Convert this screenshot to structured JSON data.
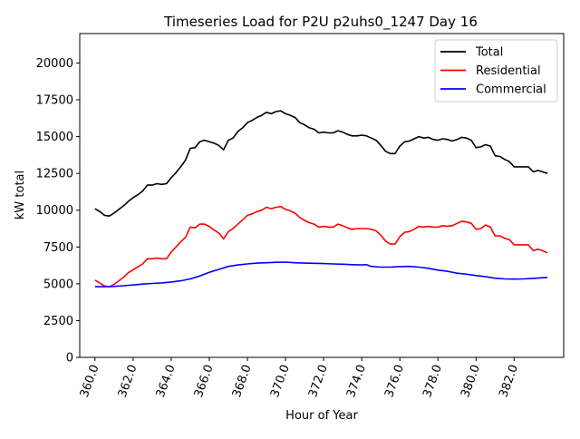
{
  "chart_data": {
    "type": "line",
    "title": "Timeseries Load for P2U p2uhs0_1247  Day 16",
    "xlabel": "Hour of Year",
    "ylabel": "kW total",
    "xlim": [
      359.2,
      384.6
    ],
    "ylim": [
      0,
      22000
    ],
    "xticks": [
      360,
      362,
      364,
      366,
      368,
      370,
      372,
      374,
      376,
      378,
      380,
      382
    ],
    "xtick_labels": [
      "360.0",
      "362.0",
      "364.0",
      "366.0",
      "368.0",
      "370.0",
      "372.0",
      "374.0",
      "376.0",
      "378.0",
      "380.0",
      "382.0"
    ],
    "yticks": [
      0,
      2500,
      5000,
      7500,
      10000,
      12500,
      15000,
      17500,
      20000
    ],
    "ytick_labels": [
      "0",
      "2500",
      "5000",
      "7500",
      "10000",
      "12500",
      "15000",
      "17500",
      "20000"
    ],
    "legend_position": "top-right",
    "series": [
      {
        "name": "Total",
        "color": "#000000",
        "points": [
          [
            360,
            10100
          ],
          [
            360.25,
            9900
          ],
          [
            360.5,
            9650
          ],
          [
            360.75,
            9600
          ],
          [
            361,
            9800
          ],
          [
            361.25,
            10050
          ],
          [
            361.5,
            10300
          ],
          [
            361.75,
            10600
          ],
          [
            362,
            10850
          ],
          [
            362.25,
            11050
          ],
          [
            362.5,
            11300
          ],
          [
            362.75,
            11700
          ],
          [
            363,
            11700
          ],
          [
            363.25,
            11800
          ],
          [
            363.5,
            11750
          ],
          [
            363.75,
            11800
          ],
          [
            364,
            12200
          ],
          [
            364.25,
            12550
          ],
          [
            364.5,
            12950
          ],
          [
            364.75,
            13400
          ],
          [
            365,
            14200
          ],
          [
            365.25,
            14250
          ],
          [
            365.5,
            14650
          ],
          [
            365.75,
            14750
          ],
          [
            366,
            14650
          ],
          [
            366.25,
            14550
          ],
          [
            366.5,
            14400
          ],
          [
            366.75,
            14100
          ],
          [
            367,
            14750
          ],
          [
            367.25,
            14900
          ],
          [
            367.5,
            15350
          ],
          [
            367.75,
            15600
          ],
          [
            368,
            15950
          ],
          [
            368.25,
            16100
          ],
          [
            368.5,
            16300
          ],
          [
            368.75,
            16450
          ],
          [
            369,
            16650
          ],
          [
            369.25,
            16550
          ],
          [
            369.5,
            16700
          ],
          [
            369.75,
            16750
          ],
          [
            370,
            16550
          ],
          [
            370.25,
            16450
          ],
          [
            370.5,
            16300
          ],
          [
            370.75,
            15950
          ],
          [
            371,
            15800
          ],
          [
            371.25,
            15600
          ],
          [
            371.5,
            15500
          ],
          [
            371.75,
            15250
          ],
          [
            372,
            15300
          ],
          [
            372.25,
            15250
          ],
          [
            372.5,
            15250
          ],
          [
            372.75,
            15400
          ],
          [
            373,
            15300
          ],
          [
            373.25,
            15150
          ],
          [
            373.5,
            15050
          ],
          [
            373.75,
            15050
          ],
          [
            374,
            15100
          ],
          [
            374.25,
            15050
          ],
          [
            374.5,
            14900
          ],
          [
            374.75,
            14750
          ],
          [
            375,
            14400
          ],
          [
            375.25,
            14000
          ],
          [
            375.5,
            13850
          ],
          [
            375.75,
            13850
          ],
          [
            376,
            14350
          ],
          [
            376.25,
            14650
          ],
          [
            376.5,
            14700
          ],
          [
            376.75,
            14850
          ],
          [
            377,
            15000
          ],
          [
            377.25,
            14900
          ],
          [
            377.5,
            14950
          ],
          [
            377.75,
            14800
          ],
          [
            378,
            14750
          ],
          [
            378.25,
            14850
          ],
          [
            378.5,
            14800
          ],
          [
            378.75,
            14700
          ],
          [
            379,
            14800
          ],
          [
            379.25,
            14950
          ],
          [
            379.5,
            14900
          ],
          [
            379.75,
            14750
          ],
          [
            380,
            14250
          ],
          [
            380.25,
            14300
          ],
          [
            380.5,
            14450
          ],
          [
            380.75,
            14350
          ],
          [
            381,
            13700
          ],
          [
            381.25,
            13650
          ],
          [
            381.5,
            13450
          ],
          [
            381.75,
            13300
          ],
          [
            382,
            12950
          ],
          [
            382.25,
            12950
          ],
          [
            382.5,
            12950
          ],
          [
            382.75,
            12950
          ],
          [
            383,
            12600
          ],
          [
            383.25,
            12700
          ],
          [
            383.5,
            12600
          ],
          [
            383.75,
            12500
          ]
        ]
      },
      {
        "name": "Residential",
        "color": "#ff0000",
        "points": [
          [
            360,
            5250
          ],
          [
            360.25,
            5050
          ],
          [
            360.5,
            4850
          ],
          [
            360.75,
            4800
          ],
          [
            361,
            4950
          ],
          [
            361.25,
            5200
          ],
          [
            361.5,
            5450
          ],
          [
            361.75,
            5750
          ],
          [
            362,
            5950
          ],
          [
            362.25,
            6150
          ],
          [
            362.5,
            6350
          ],
          [
            362.75,
            6700
          ],
          [
            363,
            6700
          ],
          [
            363.25,
            6750
          ],
          [
            363.5,
            6700
          ],
          [
            363.75,
            6700
          ],
          [
            364,
            7150
          ],
          [
            364.25,
            7500
          ],
          [
            364.5,
            7850
          ],
          [
            364.75,
            8150
          ],
          [
            365,
            8850
          ],
          [
            365.25,
            8800
          ],
          [
            365.5,
            9050
          ],
          [
            365.75,
            9050
          ],
          [
            366,
            8900
          ],
          [
            366.25,
            8650
          ],
          [
            366.5,
            8450
          ],
          [
            366.75,
            8050
          ],
          [
            367,
            8550
          ],
          [
            367.25,
            8750
          ],
          [
            367.5,
            9050
          ],
          [
            367.75,
            9350
          ],
          [
            368,
            9650
          ],
          [
            368.25,
            9750
          ],
          [
            368.5,
            9900
          ],
          [
            368.75,
            10000
          ],
          [
            369,
            10200
          ],
          [
            369.25,
            10100
          ],
          [
            369.5,
            10200
          ],
          [
            369.75,
            10250
          ],
          [
            370,
            10050
          ],
          [
            370.25,
            9950
          ],
          [
            370.5,
            9800
          ],
          [
            370.75,
            9500
          ],
          [
            371,
            9300
          ],
          [
            371.25,
            9150
          ],
          [
            371.5,
            9050
          ],
          [
            371.75,
            8850
          ],
          [
            372,
            8900
          ],
          [
            372.25,
            8850
          ],
          [
            372.5,
            8850
          ],
          [
            372.75,
            9050
          ],
          [
            373,
            8950
          ],
          [
            373.25,
            8800
          ],
          [
            373.5,
            8700
          ],
          [
            373.75,
            8750
          ],
          [
            374,
            8750
          ],
          [
            374.25,
            8750
          ],
          [
            374.5,
            8700
          ],
          [
            374.75,
            8600
          ],
          [
            375,
            8300
          ],
          [
            375.25,
            7900
          ],
          [
            375.5,
            7700
          ],
          [
            375.75,
            7700
          ],
          [
            376,
            8200
          ],
          [
            376.25,
            8500
          ],
          [
            376.5,
            8550
          ],
          [
            376.75,
            8700
          ],
          [
            377,
            8900
          ],
          [
            377.25,
            8850
          ],
          [
            377.5,
            8900
          ],
          [
            377.75,
            8850
          ],
          [
            378,
            8850
          ],
          [
            378.25,
            8950
          ],
          [
            378.5,
            8900
          ],
          [
            378.75,
            8950
          ],
          [
            379,
            9100
          ],
          [
            379.25,
            9250
          ],
          [
            379.5,
            9200
          ],
          [
            379.75,
            9100
          ],
          [
            380,
            8700
          ],
          [
            380.25,
            8750
          ],
          [
            380.5,
            9000
          ],
          [
            380.75,
            8850
          ],
          [
            381,
            8250
          ],
          [
            381.25,
            8250
          ],
          [
            381.5,
            8100
          ],
          [
            381.75,
            8000
          ],
          [
            382,
            7650
          ],
          [
            382.25,
            7650
          ],
          [
            382.5,
            7650
          ],
          [
            382.75,
            7650
          ],
          [
            383,
            7250
          ],
          [
            383.25,
            7350
          ],
          [
            383.5,
            7250
          ],
          [
            383.75,
            7100
          ]
        ]
      },
      {
        "name": "Commercial",
        "color": "#0000ff",
        "points": [
          [
            360,
            4800
          ],
          [
            360.5,
            4800
          ],
          [
            361,
            4820
          ],
          [
            361.5,
            4870
          ],
          [
            362,
            4920
          ],
          [
            362.5,
            4980
          ],
          [
            363,
            5020
          ],
          [
            363.5,
            5060
          ],
          [
            364,
            5120
          ],
          [
            364.5,
            5200
          ],
          [
            365,
            5330
          ],
          [
            365.5,
            5530
          ],
          [
            366,
            5780
          ],
          [
            366.5,
            5980
          ],
          [
            367,
            6180
          ],
          [
            367.5,
            6280
          ],
          [
            368,
            6350
          ],
          [
            368.5,
            6400
          ],
          [
            369,
            6430
          ],
          [
            369.5,
            6460
          ],
          [
            370,
            6470
          ],
          [
            370.5,
            6430
          ],
          [
            371,
            6400
          ],
          [
            371.5,
            6390
          ],
          [
            372,
            6370
          ],
          [
            372.5,
            6350
          ],
          [
            373,
            6330
          ],
          [
            373.5,
            6300
          ],
          [
            374,
            6280
          ],
          [
            374.25,
            6300
          ],
          [
            374.5,
            6180
          ],
          [
            375,
            6130
          ],
          [
            375.5,
            6130
          ],
          [
            376,
            6170
          ],
          [
            376.5,
            6180
          ],
          [
            377,
            6130
          ],
          [
            377.5,
            6050
          ],
          [
            378,
            5930
          ],
          [
            378.5,
            5850
          ],
          [
            379,
            5720
          ],
          [
            379.5,
            5650
          ],
          [
            380,
            5560
          ],
          [
            380.5,
            5480
          ],
          [
            381,
            5380
          ],
          [
            381.5,
            5330
          ],
          [
            382,
            5320
          ],
          [
            382.5,
            5330
          ],
          [
            383,
            5370
          ],
          [
            383.5,
            5410
          ],
          [
            383.75,
            5430
          ]
        ]
      }
    ]
  }
}
